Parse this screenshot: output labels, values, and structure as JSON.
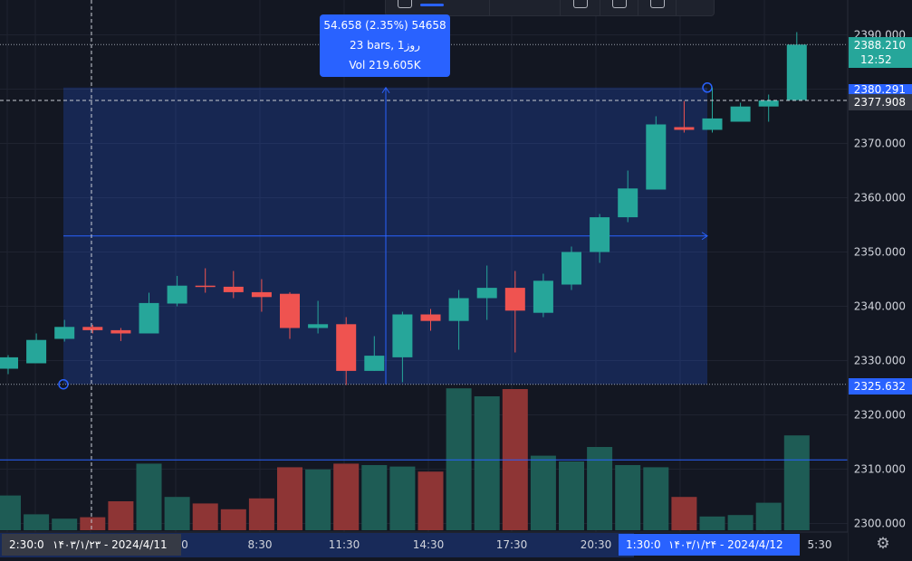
{
  "theme": {
    "background": "#131722",
    "grid": "#1f2330",
    "up": "#26a69a",
    "down": "#ef5350",
    "measure_fill": "#2962ff",
    "accent": "#2962ff",
    "axis_text": "#d1d4dc"
  },
  "chart_data": {
    "type": "candlestick",
    "y_range": [
      2297.5,
      2394
    ],
    "y_ticks": [
      "2390.000",
      "2380.000",
      "2370.000",
      "2360.000",
      "2350.000",
      "2340.000",
      "2330.000",
      "2320.000",
      "2310.000",
      "2300.000"
    ],
    "y_tick_values": [
      2390,
      2380,
      2370,
      2360,
      2350,
      2340,
      2330,
      2320,
      2310,
      2300
    ],
    "x_ticks": [
      "8:30",
      "11:30",
      "14:30",
      "17:30",
      "20:30",
      "5:30"
    ],
    "x_partial_tick": "0",
    "candles": [
      {
        "o": 2328.5,
        "h": 2331,
        "l": 2327.5,
        "c": 2330.6,
        "v": 0.48
      },
      {
        "o": 2329.5,
        "h": 2335,
        "l": 2329.5,
        "c": 2333.8,
        "v": 0.22
      },
      {
        "o": 2334.0,
        "h": 2337.5,
        "l": 2333.5,
        "c": 2336.2,
        "v": 0.16
      },
      {
        "o": 2336.2,
        "h": 2336.6,
        "l": 2335.0,
        "c": 2335.6,
        "v": 0.18
      },
      {
        "o": 2335.6,
        "h": 2336.0,
        "l": 2333.6,
        "c": 2335.0,
        "v": 0.4
      },
      {
        "o": 2335.0,
        "h": 2342.5,
        "l": 2335.0,
        "c": 2340.6,
        "v": 0.92
      },
      {
        "o": 2340.5,
        "h": 2345.6,
        "l": 2340.0,
        "c": 2343.8,
        "v": 0.46
      },
      {
        "o": 2343.8,
        "h": 2347.0,
        "l": 2342.5,
        "c": 2343.6,
        "v": 0.37
      },
      {
        "o": 2343.6,
        "h": 2346.5,
        "l": 2341.5,
        "c": 2342.6,
        "v": 0.29
      },
      {
        "o": 2342.6,
        "h": 2345.0,
        "l": 2339.0,
        "c": 2341.7,
        "v": 0.44
      },
      {
        "o": 2342.3,
        "h": 2342.6,
        "l": 2334.0,
        "c": 2336.0,
        "v": 0.87
      },
      {
        "o": 2336.0,
        "h": 2341.0,
        "l": 2335.0,
        "c": 2336.7,
        "v": 0.84
      },
      {
        "o": 2336.7,
        "h": 2338.0,
        "l": 2325.5,
        "c": 2328.1,
        "v": 0.92
      },
      {
        "o": 2328.1,
        "h": 2334.5,
        "l": 2328.1,
        "c": 2330.9,
        "v": 0.9
      },
      {
        "o": 2330.6,
        "h": 2339.0,
        "l": 2326.0,
        "c": 2338.5,
        "v": 0.88
      },
      {
        "o": 2338.5,
        "h": 2339.5,
        "l": 2335.5,
        "c": 2337.3,
        "v": 0.81
      },
      {
        "o": 2337.3,
        "h": 2343.0,
        "l": 2332.0,
        "c": 2341.5,
        "v": 1.96
      },
      {
        "o": 2341.5,
        "h": 2347.5,
        "l": 2337.5,
        "c": 2343.4,
        "v": 1.85
      },
      {
        "o": 2343.4,
        "h": 2346.5,
        "l": 2331.5,
        "c": 2339.2,
        "v": 1.95
      },
      {
        "o": 2338.8,
        "h": 2346.0,
        "l": 2338.0,
        "c": 2344.7,
        "v": 1.03
      },
      {
        "o": 2344.0,
        "h": 2351.0,
        "l": 2343.0,
        "c": 2350.0,
        "v": 0.95
      },
      {
        "o": 2350.0,
        "h": 2357.0,
        "l": 2348.0,
        "c": 2356.4,
        "v": 1.15
      },
      {
        "o": 2356.4,
        "h": 2365.0,
        "l": 2355.5,
        "c": 2361.7,
        "v": 0.9
      },
      {
        "o": 2361.5,
        "h": 2375.0,
        "l": 2361.5,
        "c": 2373.5,
        "v": 0.87
      },
      {
        "o": 2373.0,
        "h": 2377.8,
        "l": 2372.0,
        "c": 2372.5,
        "v": 0.46
      },
      {
        "o": 2372.5,
        "h": 2380.3,
        "l": 2372.0,
        "c": 2374.6,
        "v": 0.19
      },
      {
        "o": 2374.0,
        "h": 2377.5,
        "l": 2374.0,
        "c": 2376.8,
        "v": 0.21
      },
      {
        "o": 2376.8,
        "h": 2379.0,
        "l": 2374.0,
        "c": 2377.9,
        "v": 0.38
      },
      {
        "o": 2378.0,
        "h": 2390.5,
        "l": 2377.9,
        "c": 2388.2,
        "v": 1.31
      }
    ]
  },
  "labels": {
    "last_price": "2388.210",
    "countdown": "12:52",
    "measure_high": "2380.291",
    "crosshair_price": "2377.908",
    "measure_low": "2325.632",
    "crosshair_time": "2:30:0",
    "range_start": "۱۴۰۳/۱/۲۳ - 2024/4/11",
    "range_end_time": "1:30:0",
    "range_end": "۱۴۰۳/۱/۲۴ - 2024/4/12"
  },
  "tooltip": {
    "line1": "54.658 (2.35%) 54658",
    "line2": "23 bars, 1روز",
    "line3": "Vol 219.605K"
  },
  "icons": {
    "toolbar": [
      "text-icon",
      "measure-icon",
      "wave-icon",
      "flag-icon",
      "settings-icon",
      "calendar-icon",
      "trash-icon"
    ],
    "axis_settings": "gear-icon"
  }
}
